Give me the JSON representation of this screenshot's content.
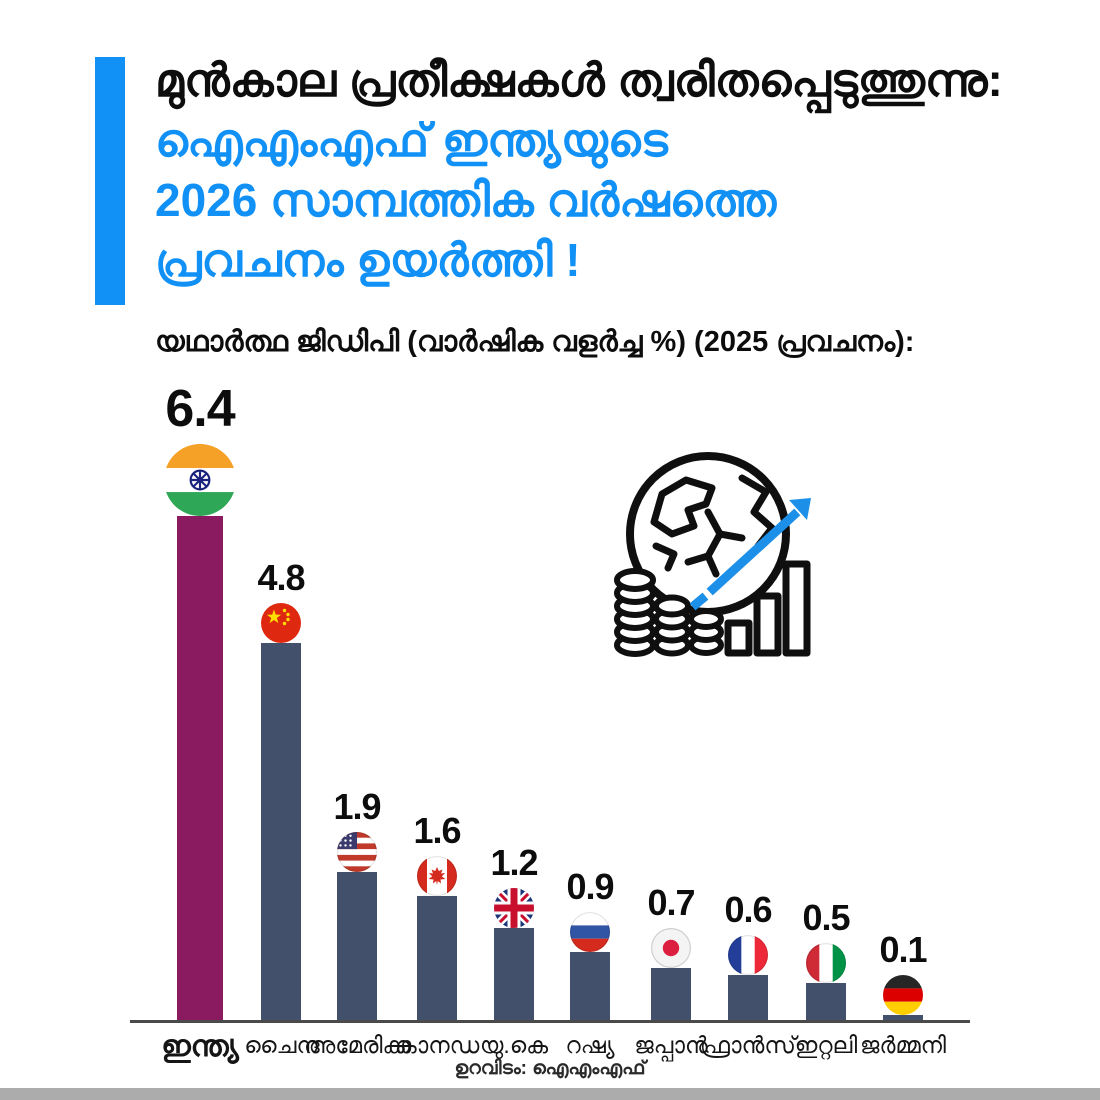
{
  "header": {
    "title_line1": "മുൻകാല പ്രതീക്ഷകൾ ത്വരിതപ്പെടുത്തുന്നു:",
    "title_line2": "ഐഎംഎഫ് ഇന്ത്യയുടെ",
    "title_line3": "2026 സാമ്പത്തിക വർഷത്തെ",
    "title_line4": "പ്രവചനം ഉയർത്തി !",
    "subtitle": "യഥാർത്ഥ ജിഡിപി (വാർഷിക വളർച്ച %) (2025 പ്രവചനം):"
  },
  "chart_data": {
    "type": "bar",
    "title": "യഥാർത്ഥ ജിഡിപി (വാർഷിക വളർച്ച %) (2025 പ്രവചനം):",
    "categories": [
      "ഇന്ത്യ",
      "ചൈന",
      "അമേരിക്ക",
      "കാനഡ",
      "യു.കെ",
      "റഷ്യ",
      "ജപ്പാൻ",
      "ഫ്രാൻസ്",
      "ഇറ്റലി",
      "ജർമ്മനി"
    ],
    "values": [
      6.4,
      4.8,
      1.9,
      1.6,
      1.2,
      0.9,
      0.7,
      0.6,
      0.5,
      0.1
    ],
    "xlabel": "",
    "ylabel": "",
    "ylim": [
      0,
      6.4
    ],
    "grid": false,
    "legend": false,
    "highlight_index": 0,
    "bar_colors": [
      "#8A1B60",
      "#42506B",
      "#42506B",
      "#42506B",
      "#42506B",
      "#42506B",
      "#42506B",
      "#42506B",
      "#42506B",
      "#42506B"
    ]
  },
  "icons": {
    "decoration": "globe-coins-growth-chart-icon",
    "flags": [
      "india-flag-icon",
      "china-flag-icon",
      "usa-flag-icon",
      "canada-flag-icon",
      "uk-flag-icon",
      "russia-flag-icon",
      "japan-flag-icon",
      "france-flag-icon",
      "italy-flag-icon",
      "germany-flag-icon"
    ]
  },
  "footer": {
    "source": "ഉറവിടം: ഐഎംഎഫ്"
  },
  "colors": {
    "accent_blue": "#1191F5",
    "india_bar": "#8A1B60",
    "default_bar": "#42506B",
    "axis_line": "#4A4A4A",
    "bottom_strip": "#ACACAC",
    "text_black": "#0D0D0D"
  }
}
